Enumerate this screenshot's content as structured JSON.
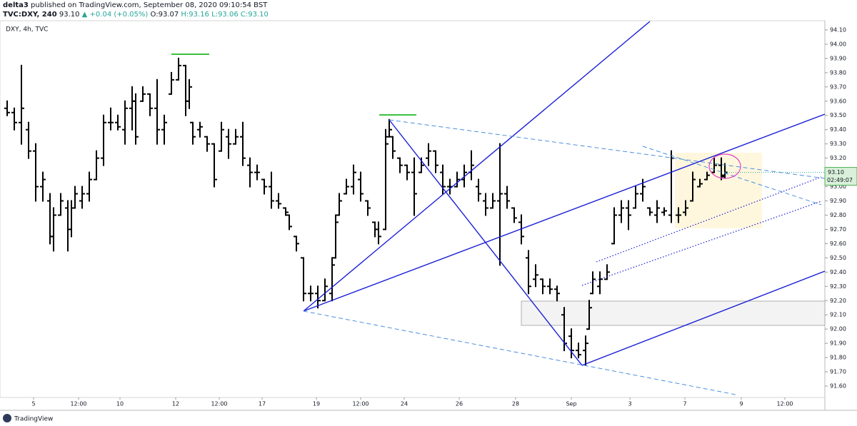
{
  "header": {
    "author": "delta3",
    "published": "published on TradingView.com, September 08, 2020 09:10:54 BST",
    "symbol": "TVC:DXY, 240",
    "price": "93.10",
    "change": "▲ +0.04 (+0.05%)",
    "ohlc_text": [
      "O:93.07",
      "H:93.16",
      "L:93.06",
      "C:93.10"
    ]
  },
  "footer": {
    "brand": "TradingView"
  },
  "chart_data": {
    "type": "ohlc",
    "title": "DXY, 4h, TVC",
    "color": "#000000",
    "xlim": [
      0,
      115.5
    ],
    "ylim": [
      91.52,
      94.165
    ],
    "xticks": [
      {
        "value": 4.7,
        "label": "5"
      },
      {
        "value": 11,
        "label": "12:00"
      },
      {
        "value": 16.8,
        "label": "10"
      },
      {
        "value": 24.6,
        "label": "12"
      },
      {
        "value": 30.7,
        "label": "12:00"
      },
      {
        "value": 36.7,
        "label": "17"
      },
      {
        "value": 44.3,
        "label": "19"
      },
      {
        "value": 50.5,
        "label": "12:00"
      },
      {
        "value": 56.6,
        "label": "24"
      },
      {
        "value": 64.3,
        "label": "26"
      },
      {
        "value": 72.2,
        "label": "28"
      },
      {
        "value": 80,
        "label": "Sep"
      },
      {
        "value": 88.2,
        "label": "3"
      },
      {
        "value": 95.9,
        "label": "7"
      },
      {
        "value": 103.8,
        "label": "9"
      },
      {
        "value": 109.9,
        "label": "12:00"
      }
    ],
    "yticks": [
      {
        "value": 91.6,
        "label": "91.60"
      },
      {
        "value": 91.7,
        "label": "91.70"
      },
      {
        "value": 91.8,
        "label": "91.80"
      },
      {
        "value": 91.9,
        "label": "91.90"
      },
      {
        "value": 92.0,
        "label": "92.00"
      },
      {
        "value": 92.1,
        "label": "92.10"
      },
      {
        "value": 92.2,
        "label": "92.20"
      },
      {
        "value": 92.3,
        "label": "92.30"
      },
      {
        "value": 92.4,
        "label": "92.40"
      },
      {
        "value": 92.5,
        "label": "92.50"
      },
      {
        "value": 92.6,
        "label": "92.60"
      },
      {
        "value": 92.7,
        "label": "92.70"
      },
      {
        "value": 92.8,
        "label": "92.80"
      },
      {
        "value": 92.9,
        "label": "92.90"
      },
      {
        "value": 93.0,
        "label": "93.00"
      },
      {
        "value": 93.1,
        "label": "93.10"
      },
      {
        "value": 93.2,
        "label": "93.20"
      },
      {
        "value": 93.3,
        "label": "93.30"
      },
      {
        "value": 93.4,
        "label": "93.40"
      },
      {
        "value": 93.5,
        "label": "93.50"
      },
      {
        "value": 93.6,
        "label": "93.60"
      },
      {
        "value": 93.7,
        "label": "93.70"
      },
      {
        "value": 93.8,
        "label": "93.80"
      },
      {
        "value": 93.9,
        "label": "93.90"
      },
      {
        "value": 94.0,
        "label": "94.00"
      },
      {
        "value": 94.1,
        "label": "94.10"
      }
    ],
    "last_price": {
      "value": 93.1,
      "label": "93.10"
    },
    "countdown": "02:49:07",
    "x": [
      1,
      2,
      3,
      4,
      5,
      6,
      7,
      7.5,
      8.5,
      9.5,
      10,
      10.5,
      11.5,
      12.5,
      13.5,
      14.5,
      15.5,
      16.5,
      17.5,
      18.5,
      19,
      20,
      21,
      22,
      23,
      24,
      25,
      26,
      26.5,
      27,
      28,
      29,
      30,
      31,
      32,
      33,
      34,
      35,
      36,
      37,
      38,
      39,
      40,
      40.5,
      41.5,
      42.5,
      43.5,
      44.5,
      45.5,
      46.5,
      47,
      47.5,
      48.5,
      49.5,
      50.5,
      51.5,
      52.5,
      53,
      54,
      54.5,
      55,
      56,
      57,
      58,
      59,
      60,
      61,
      62,
      63,
      64,
      65,
      66,
      67,
      68,
      69,
      70,
      71,
      72,
      73,
      74,
      75,
      76,
      77,
      78,
      79,
      80,
      81,
      82,
      82.5,
      83,
      84,
      85,
      86,
      87,
      88,
      89,
      90,
      91,
      92,
      93,
      94,
      95,
      96,
      97,
      98,
      99,
      100,
      101,
      101.5
    ],
    "ohlc": [
      [
        93.55,
        93.6,
        93.5,
        93.52
      ],
      [
        93.52,
        93.55,
        93.4,
        93.45
      ],
      [
        93.45,
        93.85,
        93.3,
        93.55
      ],
      [
        93.4,
        93.45,
        93.2,
        93.25
      ],
      [
        93.25,
        93.3,
        92.9,
        93.0
      ],
      [
        93.0,
        93.1,
        92.9,
        93.05
      ],
      [
        92.9,
        92.95,
        92.6,
        92.65
      ],
      [
        92.65,
        92.85,
        92.55,
        92.8
      ],
      [
        92.8,
        92.95,
        92.8,
        92.9
      ],
      [
        92.85,
        92.9,
        92.55,
        92.7
      ],
      [
        92.7,
        92.9,
        92.65,
        92.85
      ],
      [
        92.85,
        93.0,
        92.85,
        92.95
      ],
      [
        92.9,
        93.0,
        92.85,
        92.95
      ],
      [
        92.95,
        93.1,
        92.9,
        93.05
      ],
      [
        93.05,
        93.25,
        93.05,
        93.2
      ],
      [
        93.2,
        93.5,
        93.15,
        93.45
      ],
      [
        93.45,
        93.55,
        93.4,
        93.45
      ],
      [
        93.45,
        93.5,
        93.4,
        93.42
      ],
      [
        93.4,
        93.6,
        93.3,
        93.55
      ],
      [
        93.55,
        93.7,
        93.4,
        93.6
      ],
      [
        93.6,
        93.65,
        93.3,
        93.35
      ],
      [
        93.6,
        93.7,
        93.6,
        93.65
      ],
      [
        93.65,
        93.65,
        93.5,
        93.55
      ],
      [
        93.55,
        93.75,
        93.3,
        93.4
      ],
      [
        93.4,
        93.5,
        93.3,
        93.45
      ],
      [
        93.65,
        93.8,
        93.65,
        93.75
      ],
      [
        93.75,
        93.9,
        93.75,
        93.85
      ],
      [
        93.85,
        93.85,
        93.5,
        93.6
      ],
      [
        93.6,
        93.75,
        93.55,
        93.7
      ],
      [
        93.45,
        93.45,
        93.3,
        93.35
      ],
      [
        93.4,
        93.45,
        93.35,
        93.42
      ],
      [
        93.35,
        93.35,
        93.25,
        93.3
      ],
      [
        93.3,
        93.3,
        93.0,
        93.05
      ],
      [
        93.25,
        93.45,
        93.25,
        93.4
      ],
      [
        93.35,
        93.4,
        93.2,
        93.3
      ],
      [
        93.3,
        93.4,
        93.3,
        93.35
      ],
      [
        93.35,
        93.45,
        93.15,
        93.2
      ],
      [
        93.15,
        93.2,
        93.0,
        93.1
      ],
      [
        93.1,
        93.15,
        93.05,
        93.1
      ],
      [
        93.05,
        93.05,
        92.95,
        93.0
      ],
      [
        93.0,
        93.1,
        92.85,
        92.9
      ],
      [
        92.9,
        92.95,
        92.85,
        92.88
      ],
      [
        92.85,
        92.85,
        92.8,
        92.82
      ],
      [
        92.8,
        92.8,
        92.7,
        92.72
      ],
      [
        92.65,
        92.65,
        92.55,
        92.6
      ],
      [
        92.5,
        92.5,
        92.2,
        92.25
      ],
      [
        92.25,
        92.3,
        92.2,
        92.25
      ],
      [
        92.25,
        92.3,
        92.15,
        92.2
      ],
      [
        92.2,
        92.35,
        92.2,
        92.3
      ],
      [
        92.25,
        92.5,
        92.2,
        92.45
      ],
      [
        92.5,
        92.8,
        92.5,
        92.75
      ],
      [
        92.8,
        92.95,
        92.8,
        92.9
      ],
      [
        92.95,
        93.05,
        92.95,
        93.0
      ],
      [
        93.0,
        93.15,
        92.95,
        93.1
      ],
      [
        93.05,
        93.1,
        92.9,
        92.95
      ],
      [
        92.9,
        92.9,
        92.8,
        92.85
      ],
      [
        92.75,
        92.75,
        92.65,
        92.7
      ],
      [
        92.7,
        92.75,
        92.6,
        92.65
      ],
      [
        92.7,
        93.4,
        92.7,
        93.3
      ],
      [
        93.35,
        93.47,
        93.35,
        93.4
      ],
      [
        93.35,
        93.35,
        93.2,
        93.25
      ],
      [
        93.2,
        93.2,
        93.1,
        93.15
      ],
      [
        93.15,
        93.15,
        93.05,
        93.1
      ],
      [
        93.1,
        93.2,
        92.8,
        92.95
      ],
      [
        93.1,
        93.2,
        93.1,
        93.15
      ],
      [
        93.2,
        93.3,
        93.15,
        93.25
      ],
      [
        93.25,
        93.25,
        93.1,
        93.15
      ],
      [
        93.1,
        93.15,
        92.95,
        93.0
      ],
      [
        93.0,
        93.05,
        92.95,
        93.0
      ],
      [
        93.0,
        93.1,
        93.0,
        93.05
      ],
      [
        93.05,
        93.15,
        93.0,
        93.1
      ],
      [
        93.1,
        93.25,
        93.05,
        93.15
      ],
      [
        93.0,
        93.05,
        92.9,
        92.95
      ],
      [
        92.9,
        92.95,
        92.8,
        92.85
      ],
      [
        92.85,
        92.95,
        92.85,
        92.9
      ],
      [
        92.9,
        93.3,
        92.45,
        92.95
      ],
      [
        92.95,
        93.0,
        92.85,
        92.9
      ],
      [
        92.85,
        92.85,
        92.75,
        92.78
      ],
      [
        92.75,
        92.8,
        92.6,
        92.65
      ],
      [
        92.5,
        92.55,
        92.25,
        92.3
      ],
      [
        92.35,
        92.45,
        92.3,
        92.38
      ],
      [
        92.35,
        92.35,
        92.25,
        92.3
      ],
      [
        92.3,
        92.35,
        92.25,
        92.28
      ],
      [
        92.28,
        92.3,
        92.2,
        92.25
      ],
      [
        92.1,
        92.15,
        91.85,
        91.9
      ],
      [
        91.95,
        92.0,
        91.8,
        91.85
      ],
      [
        91.85,
        91.9,
        91.8,
        91.82
      ],
      [
        91.85,
        91.95,
        91.75,
        91.9
      ],
      [
        92.0,
        92.2,
        92.0,
        92.15
      ],
      [
        92.25,
        92.4,
        92.25,
        92.35
      ],
      [
        92.3,
        92.4,
        92.25,
        92.35
      ],
      [
        92.35,
        92.45,
        92.35,
        92.4
      ],
      [
        92.6,
        92.85,
        92.6,
        92.8
      ],
      [
        92.8,
        92.9,
        92.75,
        92.85
      ],
      [
        92.85,
        92.9,
        92.7,
        92.8
      ],
      [
        92.85,
        93.0,
        92.85,
        92.95
      ],
      [
        92.95,
        93.05,
        92.9,
        93.0
      ],
      [
        92.85,
        92.85,
        92.8,
        92.82
      ],
      [
        92.8,
        92.9,
        92.75,
        92.85
      ],
      [
        92.82,
        92.85,
        92.8,
        92.83
      ],
      [
        92.8,
        93.25,
        92.75,
        93.2
      ],
      [
        92.8,
        92.85,
        92.75,
        92.8
      ],
      [
        92.82,
        92.9,
        92.8,
        92.85
      ],
      [
        92.9,
        93.1,
        92.9,
        93.05
      ],
      [
        93.0,
        93.05,
        93.0,
        93.02
      ],
      [
        93.05,
        93.1,
        93.05,
        93.08
      ],
      [
        93.1,
        93.2,
        93.1,
        93.15
      ],
      [
        93.15,
        93.2,
        93.05,
        93.08
      ],
      [
        93.07,
        93.16,
        93.06,
        93.1
      ]
    ]
  }
}
